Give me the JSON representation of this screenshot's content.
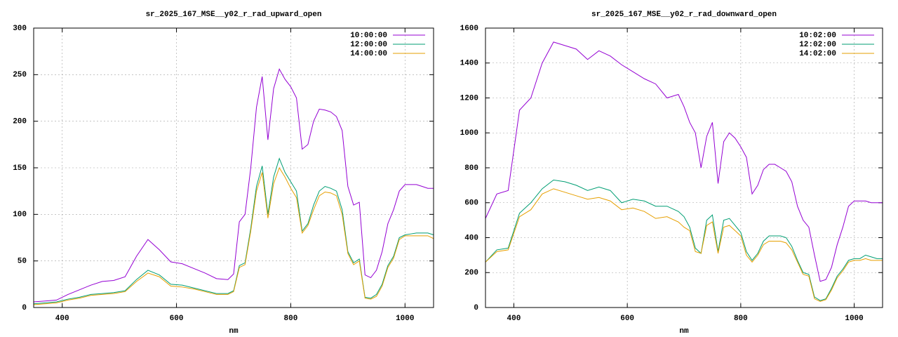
{
  "chart_data": [
    {
      "type": "line",
      "title": "sr_2025_167_MSE__y02_r_rad_upward_open",
      "xlabel": "nm",
      "x": [
        350,
        370,
        390,
        410,
        430,
        450,
        470,
        490,
        510,
        530,
        550,
        570,
        590,
        610,
        630,
        650,
        670,
        690,
        700,
        710,
        720,
        730,
        740,
        750,
        760,
        770,
        780,
        790,
        800,
        810,
        820,
        830,
        840,
        850,
        860,
        870,
        880,
        890,
        900,
        910,
        920,
        930,
        940,
        950,
        960,
        970,
        980,
        990,
        1000,
        1010,
        1020,
        1030,
        1040,
        1050
      ],
      "xlim": [
        350,
        1050
      ],
      "xticks": [
        400,
        600,
        800,
        1000
      ],
      "ylim": [
        0,
        300
      ],
      "yticks": [
        0,
        50,
        100,
        150,
        200,
        250,
        300
      ],
      "grid": true,
      "legend": "top-right",
      "series": [
        {
          "name": "10:00:00",
          "color": "#9400d3",
          "values": [
            6,
            7,
            8,
            14,
            19,
            24,
            28,
            29,
            33,
            55,
            73,
            62,
            49,
            47,
            42,
            37,
            31,
            30,
            36,
            92,
            100,
            150,
            215,
            248,
            180,
            235,
            256,
            245,
            237,
            225,
            170,
            175,
            200,
            213,
            212,
            210,
            205,
            190,
            130,
            110,
            113,
            35,
            32,
            40,
            60,
            90,
            105,
            125,
            132,
            132,
            132,
            130,
            128,
            128
          ]
        },
        {
          "name": "12:00:00",
          "color": "#009e73",
          "values": [
            4,
            5,
            6,
            9,
            11,
            14,
            15,
            16,
            18,
            30,
            40,
            35,
            25,
            24,
            21,
            18,
            15,
            15,
            18,
            45,
            48,
            85,
            130,
            152,
            100,
            140,
            160,
            145,
            135,
            125,
            82,
            90,
            110,
            125,
            130,
            128,
            125,
            105,
            60,
            48,
            52,
            11,
            10,
            14,
            25,
            45,
            55,
            75,
            78,
            79,
            80,
            80,
            80,
            78
          ]
        },
        {
          "name": "14:00:00",
          "color": "#e69f00",
          "values": [
            3,
            4,
            5,
            8,
            10,
            13,
            14,
            15,
            17,
            28,
            37,
            33,
            23,
            22,
            20,
            17,
            14,
            14,
            17,
            43,
            46,
            82,
            125,
            145,
            96,
            133,
            150,
            140,
            128,
            118,
            80,
            88,
            105,
            120,
            124,
            123,
            120,
            100,
            58,
            46,
            50,
            10,
            9,
            12,
            23,
            43,
            53,
            73,
            77,
            77,
            77,
            77,
            77,
            74
          ]
        }
      ]
    },
    {
      "type": "line",
      "title": "sr_2025_167_MSE__y02_r_rad_downward_open",
      "xlabel": "nm",
      "x": [
        350,
        370,
        390,
        410,
        430,
        450,
        470,
        490,
        510,
        530,
        550,
        570,
        590,
        610,
        630,
        650,
        670,
        690,
        700,
        710,
        720,
        730,
        740,
        750,
        760,
        770,
        780,
        790,
        800,
        810,
        820,
        830,
        840,
        850,
        860,
        870,
        880,
        890,
        900,
        910,
        920,
        930,
        940,
        950,
        960,
        970,
        980,
        990,
        1000,
        1010,
        1020,
        1030,
        1040,
        1050
      ],
      "xlim": [
        350,
        1050
      ],
      "xticks": [
        400,
        600,
        800,
        1000
      ],
      "ylim": [
        0,
        1600
      ],
      "yticks": [
        0,
        200,
        400,
        600,
        800,
        1000,
        1200,
        1400,
        1600
      ],
      "grid": true,
      "legend": "top-right",
      "series": [
        {
          "name": "10:02:00",
          "color": "#9400d3",
          "values": [
            510,
            650,
            670,
            1130,
            1200,
            1400,
            1520,
            1500,
            1480,
            1420,
            1470,
            1440,
            1390,
            1350,
            1310,
            1280,
            1200,
            1220,
            1150,
            1060,
            1000,
            800,
            980,
            1060,
            710,
            950,
            1000,
            970,
            920,
            860,
            650,
            700,
            790,
            820,
            820,
            800,
            780,
            720,
            580,
            500,
            460,
            300,
            150,
            160,
            230,
            360,
            460,
            580,
            610,
            610,
            610,
            600,
            600,
            600
          ]
        },
        {
          "name": "12:02:00",
          "color": "#009e73",
          "values": [
            260,
            330,
            340,
            540,
            600,
            680,
            730,
            720,
            700,
            670,
            690,
            670,
            600,
            620,
            610,
            580,
            580,
            550,
            520,
            460,
            340,
            310,
            500,
            530,
            320,
            500,
            510,
            470,
            430,
            320,
            270,
            310,
            380,
            410,
            410,
            410,
            400,
            350,
            270,
            200,
            190,
            60,
            40,
            50,
            110,
            180,
            220,
            270,
            280,
            280,
            300,
            290,
            280,
            280
          ]
        },
        {
          "name": "14:02:00",
          "color": "#e69f00",
          "values": [
            260,
            320,
            330,
            520,
            560,
            650,
            680,
            660,
            640,
            620,
            630,
            610,
            560,
            570,
            550,
            510,
            520,
            490,
            460,
            440,
            320,
            310,
            470,
            490,
            310,
            460,
            470,
            440,
            410,
            300,
            260,
            300,
            360,
            380,
            380,
            380,
            370,
            330,
            260,
            190,
            180,
            50,
            35,
            45,
            100,
            170,
            210,
            260,
            270,
            270,
            280,
            270,
            270,
            270
          ]
        }
      ]
    }
  ]
}
